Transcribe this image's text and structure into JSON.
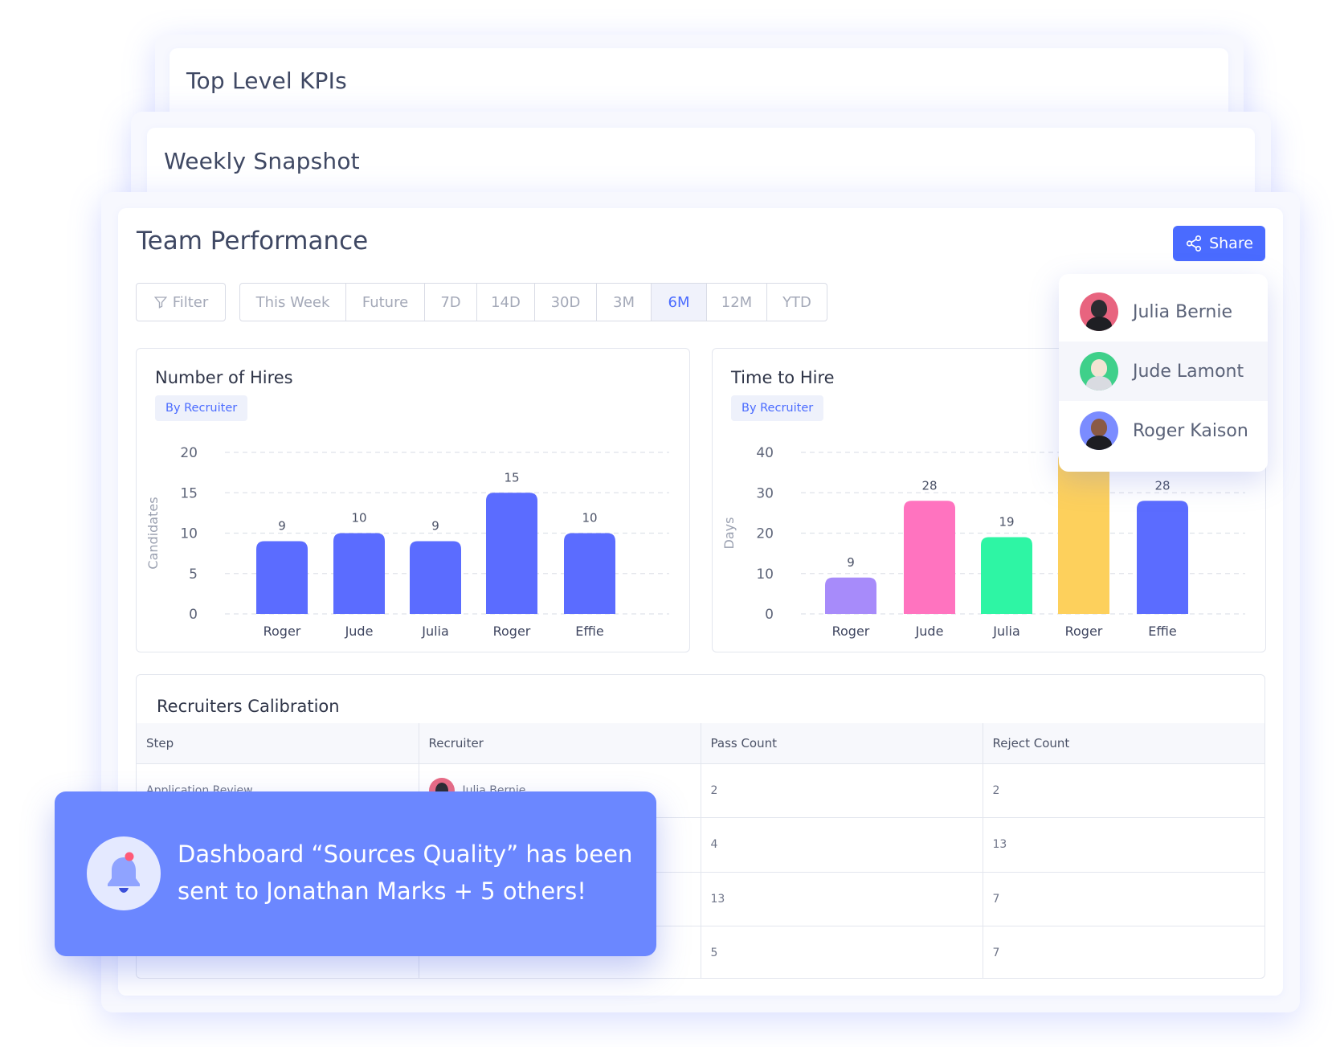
{
  "stack": {
    "kpi_title": "Top Level KPIs",
    "snapshot_title": "Weekly Snapshot"
  },
  "main": {
    "title": "Team Performance",
    "share_label": "Share",
    "filter_label": "Filter",
    "ranges": [
      "This Week",
      "Future",
      "7D",
      "14D",
      "30D",
      "3M",
      "6M",
      "12M",
      "YTD"
    ],
    "active_range": "6M"
  },
  "share_menu": {
    "people": [
      {
        "name": "Julia Bernie"
      },
      {
        "name": "Jude Lamont"
      },
      {
        "name": "Roger Kaison"
      }
    ]
  },
  "chart_data": [
    {
      "type": "bar",
      "title": "Number of Hires",
      "tag": "By Recruiter",
      "ylabel": "Candidates",
      "categories": [
        "Roger",
        "Jude",
        "Julia",
        "Roger",
        "Effie"
      ],
      "values": [
        9,
        10,
        9,
        15,
        10
      ],
      "ylim": [
        0,
        20
      ],
      "yticks": [
        0,
        5,
        10,
        15,
        20
      ],
      "grid": true,
      "colors": [
        "#5b6cff",
        "#5b6cff",
        "#5b6cff",
        "#5b6cff",
        "#5b6cff"
      ]
    },
    {
      "type": "bar",
      "title": "Time to Hire",
      "tag": "By Recruiter",
      "ylabel": "Days",
      "categories": [
        "Roger",
        "Jude",
        "Julia",
        "Roger",
        "Effie"
      ],
      "values": [
        9,
        28,
        19,
        40,
        28
      ],
      "value_labels": [
        "9",
        "28",
        "19",
        "",
        "28"
      ],
      "ylim": [
        0,
        40
      ],
      "yticks": [
        0,
        10,
        20,
        30,
        40
      ],
      "grid": true,
      "colors": [
        "#a78bfa",
        "#ff73bf",
        "#2ef5a4",
        "#fdd05c",
        "#5b6cff"
      ]
    }
  ],
  "table": {
    "title": "Recruiters Calibration",
    "columns": [
      "Step",
      "Recruiter",
      "Pass Count",
      "Reject Count"
    ],
    "rows": [
      {
        "step": "Application Review",
        "recruiter": "Julia Bernie",
        "pass": "2",
        "reject": "2"
      },
      {
        "step": "",
        "recruiter": "",
        "pass": "4",
        "reject": "13"
      },
      {
        "step": "",
        "recruiter": "",
        "pass": "13",
        "reject": "7"
      },
      {
        "step": "",
        "recruiter": "",
        "pass": "5",
        "reject": "7"
      }
    ]
  },
  "toast": {
    "message": "Dashboard “Sources Quality” has been sent to Jonathan Marks + 5 others!"
  },
  "colors": {
    "accent": "#4a6bff",
    "toast_bg": "#6b87ff"
  }
}
